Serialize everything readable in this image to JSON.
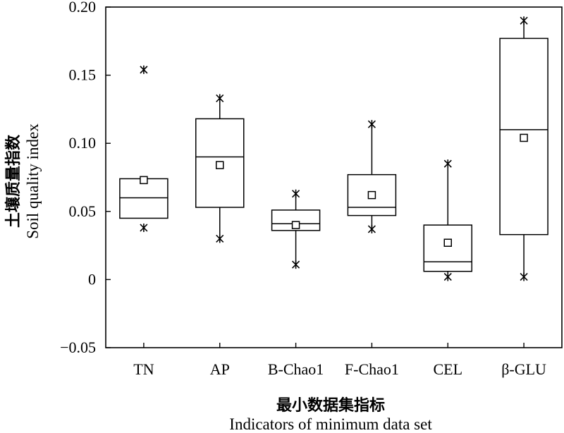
{
  "chart_data": {
    "type": "box",
    "title": "",
    "ylabel_zh": "土壤质量指数",
    "ylabel": "Soil quality index",
    "xlabel_zh": "最小数据集指标",
    "xlabel": "Indicators of minimum data set",
    "ylim": [
      -0.05,
      0.2
    ],
    "yticks": [
      -0.05,
      0,
      0.05,
      0.1,
      0.15,
      0.2
    ],
    "ytick_labels": [
      "−0.05",
      "0",
      "0.05",
      "0.10",
      "0.15",
      "0.20"
    ],
    "grid": false,
    "categories": [
      "TN",
      "AP",
      "B-Chao1",
      "F-Chao1",
      "CEL",
      "β-GLU"
    ],
    "boxes": [
      {
        "category": "TN",
        "q1": 0.045,
        "median": 0.06,
        "q3": 0.074,
        "mean": 0.073,
        "whisker_low": 0.045,
        "whisker_high": 0.074,
        "extremes": [
          0.038,
          0.154
        ]
      },
      {
        "category": "AP",
        "q1": 0.053,
        "median": 0.09,
        "q3": 0.118,
        "mean": 0.084,
        "whisker_low": 0.03,
        "whisker_high": 0.133,
        "extremes": [
          0.03,
          0.133
        ]
      },
      {
        "category": "B-Chao1",
        "q1": 0.036,
        "median": 0.041,
        "q3": 0.051,
        "mean": 0.04,
        "whisker_low": 0.011,
        "whisker_high": 0.063,
        "extremes": [
          0.011,
          0.063
        ]
      },
      {
        "category": "F-Chao1",
        "q1": 0.047,
        "median": 0.053,
        "q3": 0.077,
        "mean": 0.062,
        "whisker_low": 0.037,
        "whisker_high": 0.114,
        "extremes": [
          0.037,
          0.114
        ]
      },
      {
        "category": "CEL",
        "q1": 0.006,
        "median": 0.013,
        "q3": 0.04,
        "mean": 0.027,
        "whisker_low": 0.002,
        "whisker_high": 0.085,
        "extremes": [
          0.002,
          0.085
        ]
      },
      {
        "category": "β-GLU",
        "q1": 0.033,
        "median": 0.11,
        "q3": 0.177,
        "mean": 0.104,
        "whisker_low": 0.002,
        "whisker_high": 0.19,
        "extremes": [
          0.002,
          0.19
        ]
      }
    ]
  }
}
